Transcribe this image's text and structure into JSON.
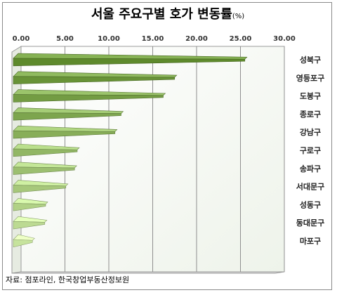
{
  "chart_data": {
    "type": "bar",
    "orientation": "horizontal",
    "title": "서울 주요구별 호가 변동률",
    "title_unit": "(%)",
    "xlim": [
      0,
      30
    ],
    "x_ticks": [
      "0.00",
      "5.00",
      "10.00",
      "15.00",
      "20.00",
      "25.00",
      "30.00"
    ],
    "categories": [
      "성북구",
      "영등포구",
      "도봉구",
      "종로구",
      "강남구",
      "구로구",
      "송파구",
      "서대문구",
      "성동구",
      "동대문구",
      "마포구"
    ],
    "values": [
      25.9,
      17.9,
      16.6,
      11.8,
      11.1,
      6.8,
      6.5,
      5.5,
      3.2,
      3.1,
      1.7
    ],
    "bar_color_dark": "#5e8a2c",
    "bar_color_light": "#c6e39d",
    "grid": true,
    "background": "#eef3ea"
  },
  "source_text": "자료: 점포라인, 한국창업부동산정보원"
}
